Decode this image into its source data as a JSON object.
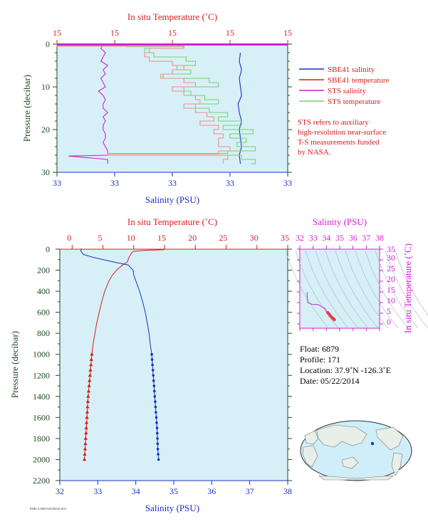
{
  "colors": {
    "plot_bg": "#d7f0f7",
    "blue": "#1a2fc8",
    "red": "#d81c1c",
    "magenta": "#d21fd2",
    "green": "#6fd56f",
    "salmon": "#f28c8c",
    "dark": "#1e4a23",
    "land": "#e8eee8",
    "ocean": "#cfeefa"
  },
  "chart_data": [
    {
      "type": "line",
      "panel": "near-surface profile",
      "top_axis_label": "In situ Temperature (˚C)",
      "top_ticks": [
        "15",
        "15",
        "15",
        "15",
        "15"
      ],
      "xlabel": "Salinity (PSU)",
      "x_ticks": [
        "33",
        "33",
        "33",
        "33",
        "33"
      ],
      "ylabel": "Pressure (decibar)",
      "y_ticks": [
        "0",
        "10",
        "20",
        "30"
      ],
      "ylim": [
        0,
        30
      ],
      "legend": [
        {
          "name": "SBE41 salinity",
          "color": "blue"
        },
        {
          "name": "SBE41 temperature",
          "color": "red"
        },
        {
          "name": "STS salinity",
          "color": "magenta"
        },
        {
          "name": "STS temperature",
          "color": "green"
        }
      ],
      "note": [
        "STS refers to auxiliary",
        "high-resolution near-surface",
        "T-S measurements funded",
        "by NASA."
      ],
      "series": [
        {
          "name": "SBE41 salinity",
          "p": [
            2,
            4,
            6,
            8,
            10,
            12,
            14,
            16,
            18,
            20,
            22,
            24,
            26,
            28
          ],
          "frac": [
            0.795,
            0.79,
            0.8,
            0.79,
            0.795,
            0.8,
            0.785,
            0.79,
            0.8,
            0.79,
            0.795,
            0.8,
            0.79,
            0.795
          ]
        },
        {
          "name": "STS salinity",
          "p": [
            0,
            1,
            2,
            3,
            4,
            5,
            6,
            7,
            8,
            9,
            10,
            11,
            12,
            13,
            14,
            15,
            16,
            17,
            18,
            19,
            20,
            21,
            22,
            23,
            24,
            25,
            26,
            26.2,
            27,
            28
          ],
          "frac": [
            0.2,
            0.19,
            0.21,
            0.2,
            0.19,
            0.22,
            0.2,
            0.21,
            0.19,
            0.2,
            0.21,
            0.18,
            0.2,
            0.21,
            0.2,
            0.2,
            0.22,
            0.2,
            0.21,
            0.2,
            0.2,
            0.21,
            0.21,
            0.2,
            0.21,
            0.22,
            0.22,
            0.05,
            0.22,
            0.22
          ]
        },
        {
          "name": "STS temperature",
          "p": [
            0,
            0.3,
            0.6,
            1,
            2,
            3,
            4,
            5,
            6,
            7,
            8,
            9,
            10,
            11,
            12,
            13,
            14,
            15,
            16,
            17,
            18,
            19,
            20,
            21,
            22,
            23,
            24,
            25,
            25.6,
            26,
            27,
            28
          ],
          "frac": [
            0,
            0.3,
            0.55,
            0.38,
            0.42,
            0.56,
            0.6,
            0.52,
            0.58,
            0.46,
            0.66,
            0.7,
            0.55,
            0.58,
            0.64,
            0.7,
            0.6,
            0.66,
            0.74,
            0.7,
            0.8,
            0.72,
            0.85,
            0.75,
            0.82,
            0.78,
            0.86,
            0.74,
            0.22,
            0.8,
            0.86,
            0.84
          ]
        },
        {
          "name": "SBE41 temperature",
          "p": [
            0,
            0.5,
            1,
            2,
            3,
            4,
            5,
            6,
            7,
            8,
            9,
            10,
            11,
            12,
            13,
            14,
            15,
            16,
            17,
            18,
            19,
            20,
            21,
            22,
            23,
            24,
            25,
            25.7,
            26,
            27,
            28
          ],
          "frac": [
            0,
            0.55,
            0.4,
            0.38,
            0.4,
            0.5,
            0.55,
            0.5,
            0.45,
            0.55,
            0.6,
            0.5,
            0.55,
            0.6,
            0.62,
            0.55,
            0.6,
            0.65,
            0.68,
            0.62,
            0.7,
            0.68,
            0.72,
            0.7,
            0.7,
            0.75,
            0.7,
            0.22,
            0.74,
            0.72,
            0.72
          ]
        }
      ]
    },
    {
      "type": "line",
      "panel": "full-depth profile",
      "top_axis_label": "In situ Temperature (˚C)",
      "top_ticks": [
        "0",
        "5",
        "10",
        "15",
        "20",
        "25",
        "30",
        "35"
      ],
      "xlabel": "Salinity (PSU)",
      "x_ticks": [
        "32",
        "33",
        "34",
        "35",
        "36",
        "37",
        "38"
      ],
      "ylabel": "Pressure (decibar)",
      "y_ticks": [
        "0",
        "200",
        "400",
        "600",
        "800",
        "1000",
        "1200",
        "1400",
        "1600",
        "1800",
        "2000",
        "2200"
      ],
      "temp_range": [
        -2,
        35
      ],
      "sal_range": [
        32,
        38
      ],
      "ylim": [
        0,
        2200
      ],
      "series": [
        {
          "name": "Temperature",
          "p": [
            0,
            5,
            10,
            20,
            30,
            50,
            80,
            120,
            150,
            200,
            250,
            300,
            400,
            500,
            600,
            700,
            800,
            900,
            1000,
            1100,
            1200,
            1300,
            1400,
            1500,
            1600,
            1700,
            1800,
            1900,
            2000
          ],
          "t": [
            15,
            14.9,
            12,
            10,
            9.7,
            9.5,
            9.2,
            9,
            8.2,
            7.2,
            6.5,
            6,
            5.3,
            4.8,
            4.4,
            4.0,
            3.7,
            3.4,
            3.2,
            3.05,
            2.9,
            2.75,
            2.6,
            2.5,
            2.4,
            2.3,
            2.2,
            2.1,
            2.0
          ]
        },
        {
          "name": "Salinity",
          "p": [
            0,
            5,
            10,
            20,
            30,
            50,
            80,
            120,
            150,
            200,
            250,
            300,
            400,
            500,
            600,
            700,
            800,
            900,
            1000,
            1100,
            1200,
            1300,
            1400,
            1500,
            1600,
            1700,
            1800,
            1900,
            2000
          ],
          "s": [
            32.58,
            32.56,
            32.55,
            32.56,
            32.58,
            32.62,
            32.9,
            33.4,
            33.8,
            33.93,
            33.95,
            34.0,
            34.1,
            34.18,
            34.25,
            34.3,
            34.35,
            34.38,
            34.42,
            34.44,
            34.46,
            34.48,
            34.5,
            34.52,
            34.54,
            34.56,
            34.57,
            34.58,
            34.6
          ]
        },
        {
          "name": "marker_pressures",
          "p": [
            1000,
            1050,
            1100,
            1150,
            1200,
            1250,
            1300,
            1350,
            1400,
            1450,
            1500,
            1550,
            1600,
            1650,
            1700,
            1750,
            1800,
            1850,
            1900,
            1950,
            2000
          ]
        }
      ]
    },
    {
      "type": "scatter",
      "panel": "T-S diagram",
      "xlabel": "Salinity (PSU)",
      "x_ticks": [
        "32",
        "33",
        "34",
        "35",
        "36",
        "37",
        "38"
      ],
      "ylabel": "In situ Temperature (˚C)",
      "y_ticks": [
        "0",
        "5",
        "10",
        "15",
        "20",
        "25",
        "30",
        "35"
      ],
      "xlim": [
        32,
        38
      ],
      "ylim": [
        -2,
        35
      ],
      "series": [
        {
          "name": "T-S",
          "s": [
            32.55,
            32.56,
            32.6,
            32.9,
            33.4,
            33.9,
            34.0,
            34.1,
            34.2,
            34.3,
            34.4,
            34.5,
            34.55,
            34.6
          ],
          "t": [
            14.9,
            12,
            10,
            9.2,
            9,
            7.2,
            6,
            5.3,
            4.6,
            3.8,
            3.2,
            2.6,
            2.3,
            2.0
          ]
        }
      ]
    }
  ],
  "float_info": {
    "float": "Float:  6879",
    "profile": "Profile:  171",
    "location": "Location:  37.9˚N  -126.3˚E",
    "date": "Date:  05/22/2014"
  },
  "map": {
    "marker_color": "blue"
  },
  "footer_mark": "PMEL/CSIRO/GEOMAR 2014"
}
